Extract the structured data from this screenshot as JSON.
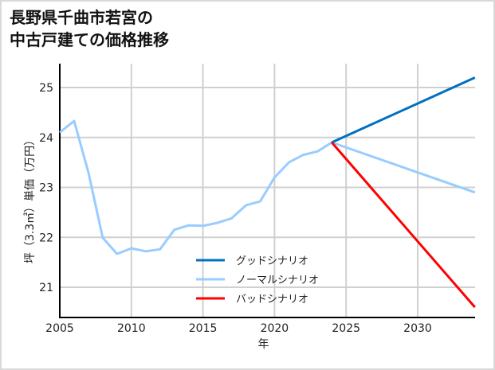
{
  "title_line1": "長野県千曲市若宮の",
  "title_line2": "中古戸建ての価格推移",
  "chart_data": {
    "type": "line",
    "title": "長野県千曲市若宮の中古戸建ての価格推移",
    "xlabel": "年",
    "ylabel": "坪（3.3㎡）単価（万円）",
    "xlim": [
      2005,
      2034
    ],
    "ylim": [
      20.4,
      25.4
    ],
    "x_ticks": [
      2005,
      2010,
      2015,
      2020,
      2025,
      2030
    ],
    "y_ticks": [
      21,
      22,
      23,
      24,
      25
    ],
    "grid": true,
    "legend_position": "lower center inside",
    "series": [
      {
        "name": "グッドシナリオ",
        "color": "#0070c0",
        "x": [
          2024,
          2034
        ],
        "y": [
          23.9,
          25.2
        ]
      },
      {
        "name": "ノーマルシナリオ",
        "color": "#99ccff",
        "x": [
          2005,
          2006,
          2007,
          2008,
          2009,
          2010,
          2011,
          2012,
          2013,
          2014,
          2015,
          2016,
          2017,
          2018,
          2019,
          2020,
          2021,
          2022,
          2023,
          2024,
          2034
        ],
        "y": [
          24.1,
          24.33,
          23.3,
          21.99,
          21.67,
          21.78,
          21.72,
          21.76,
          22.15,
          22.24,
          22.23,
          22.29,
          22.38,
          22.64,
          22.72,
          23.2,
          23.5,
          23.65,
          23.72,
          23.9,
          22.9
        ]
      },
      {
        "name": "バッドシナリオ",
        "color": "#ff0000",
        "x": [
          2024,
          2034
        ],
        "y": [
          23.9,
          20.6
        ]
      }
    ]
  }
}
